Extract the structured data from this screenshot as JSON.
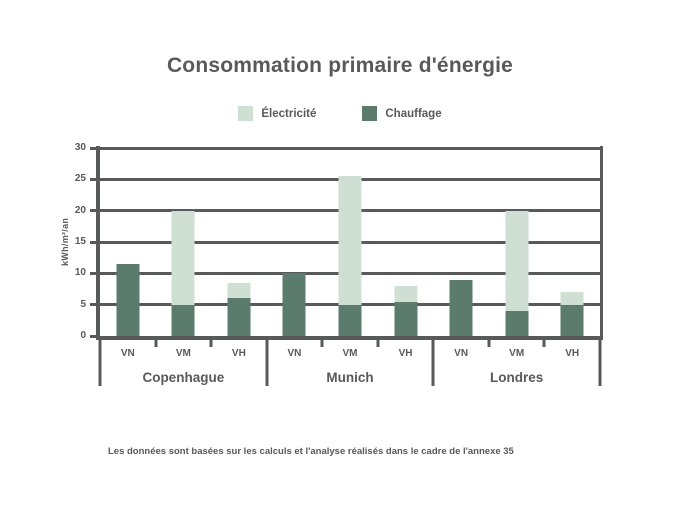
{
  "page": {
    "background": "#ffffff",
    "text_color": "#58595b"
  },
  "footnote": "Les données sont basées sur les calculs et l'analyse réalisés dans le cadre de l'annexe 35",
  "chart_data": {
    "type": "bar",
    "stacked": true,
    "title": "Consommation primaire d'énergie",
    "xlabel": "",
    "ylabel": "kWh/m²/an",
    "ylim": [
      0,
      30
    ],
    "ytick_step": 5,
    "grid": true,
    "legend_position": "top",
    "groups": [
      "Copenhague",
      "Munich",
      "Londres"
    ],
    "categories": [
      "VN",
      "VM",
      "VH"
    ],
    "series": [
      {
        "name": "Électricité",
        "key": "electricite",
        "color": "#cfdfd4",
        "values": [
          [
            0,
            15,
            2.5
          ],
          [
            0,
            20.5,
            2.5
          ],
          [
            0,
            16,
            2
          ]
        ]
      },
      {
        "name": "Chauffage",
        "key": "chauffage",
        "color": "#5b7b6c",
        "values": [
          [
            11.5,
            5,
            6
          ],
          [
            10,
            5,
            5.5
          ],
          [
            9,
            4,
            5
          ]
        ]
      }
    ]
  }
}
